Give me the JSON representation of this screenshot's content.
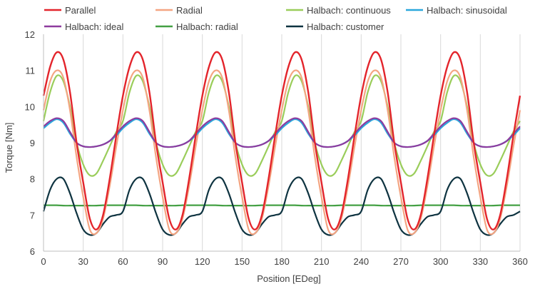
{
  "chart_data": {
    "type": "line",
    "title": "",
    "xlabel": "Position [EDeg]",
    "ylabel": "Torque [Nm]",
    "xlim": [
      0,
      360
    ],
    "ylim": [
      6,
      12
    ],
    "x_ticks": [
      0,
      30,
      60,
      90,
      120,
      150,
      180,
      210,
      240,
      270,
      300,
      330,
      360
    ],
    "y_ticks": [
      6,
      7,
      8,
      9,
      10,
      11,
      12
    ],
    "grid": "vertical",
    "legend_position": "top",
    "x": [
      0,
      5,
      10,
      15,
      20,
      25,
      30,
      35,
      40,
      45,
      50,
      55,
      60
    ],
    "periodic_extension": {
      "period": 60,
      "x_end": 360
    },
    "series": [
      {
        "name": "Parallel",
        "color": "#e3242b",
        "values": [
          10.3,
          11.1,
          11.5,
          11.3,
          10.4,
          9.0,
          7.9,
          6.9,
          6.6,
          7.0,
          8.0,
          9.2,
          10.3
        ]
      },
      {
        "name": "Radial",
        "color": "#f4a582",
        "values": [
          9.9,
          10.7,
          11.0,
          10.8,
          9.9,
          8.6,
          7.5,
          6.6,
          6.5,
          6.9,
          7.8,
          8.9,
          9.9
        ]
      },
      {
        "name": "Halbach: continuous",
        "color": "#9acd5a",
        "values": [
          9.6,
          10.4,
          10.85,
          10.7,
          10.0,
          9.0,
          8.4,
          8.1,
          8.15,
          8.5,
          8.9,
          9.3,
          9.6
        ]
      },
      {
        "name": "Halbach: sinusoidal",
        "color": "#2aa7dc",
        "values": [
          9.4,
          9.55,
          9.65,
          9.55,
          9.25,
          9.0,
          8.9,
          8.88,
          8.9,
          8.95,
          9.05,
          9.2,
          9.4
        ]
      },
      {
        "name": "Halbach: ideal",
        "color": "#8e3b9e",
        "values": [
          9.45,
          9.6,
          9.68,
          9.6,
          9.3,
          9.0,
          8.9,
          8.88,
          8.9,
          8.95,
          9.05,
          9.25,
          9.45
        ]
      },
      {
        "name": "Halbach: radial",
        "color": "#44a044",
        "values": [
          7.27,
          7.27,
          7.27,
          7.26,
          7.26,
          7.26,
          7.26,
          7.26,
          7.26,
          7.27,
          7.27,
          7.27,
          7.27
        ]
      },
      {
        "name": "Halbach: customer",
        "color": "#0e3340",
        "values": [
          7.1,
          7.7,
          8.0,
          8.0,
          7.6,
          7.05,
          6.6,
          6.45,
          6.5,
          6.75,
          6.95,
          7.0,
          7.1
        ]
      }
    ]
  }
}
